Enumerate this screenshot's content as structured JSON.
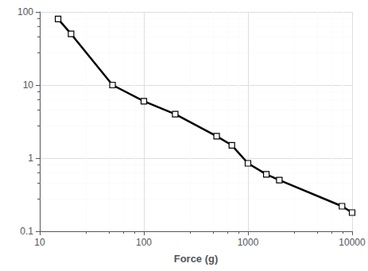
{
  "chart_data": {
    "type": "line",
    "xlabel": "Force (g)",
    "x": [
      15,
      20,
      50,
      100,
      200,
      500,
      700,
      1000,
      1500,
      2000,
      8000,
      10000
    ],
    "values": [
      80,
      50,
      10,
      6,
      4,
      2.0,
      1.5,
      0.85,
      0.6,
      0.5,
      0.22,
      0.18
    ],
    "xlim": [
      10,
      10000
    ],
    "ylim": [
      0.1,
      100
    ],
    "xticks": [
      10,
      100,
      1000,
      10000
    ],
    "yticks": [
      0.1,
      1,
      10,
      100
    ],
    "log": true,
    "grid": true,
    "color": "#000000",
    "marker": "square"
  }
}
